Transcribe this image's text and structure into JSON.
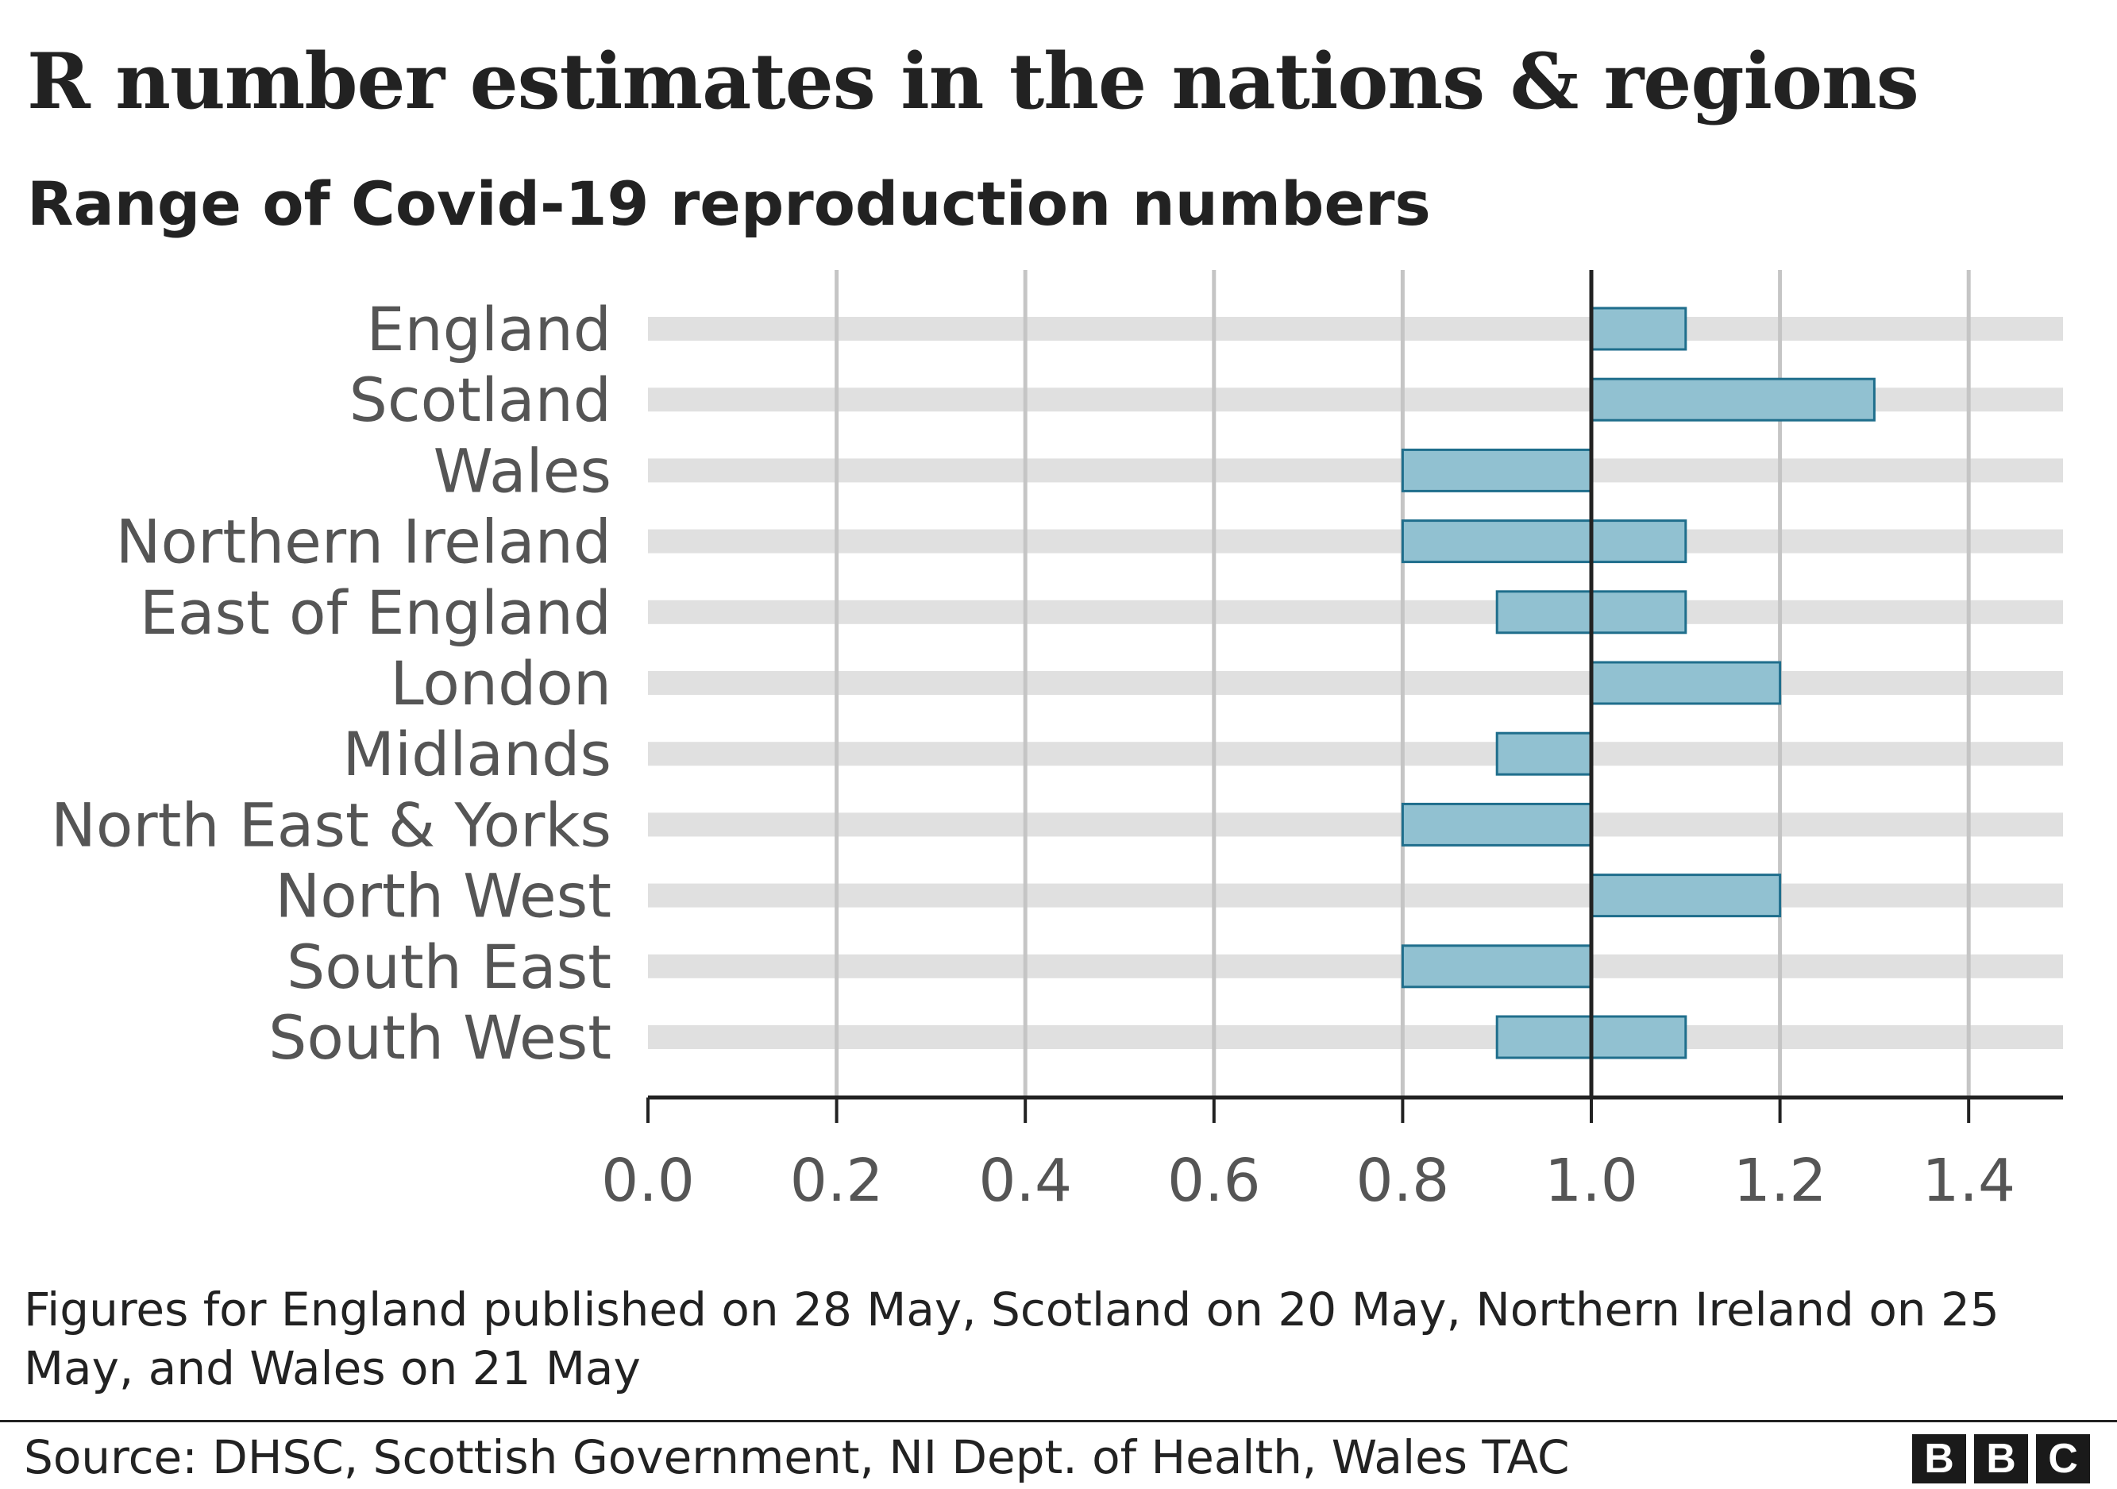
{
  "chart_data": {
    "type": "bar",
    "orientation": "horizontal",
    "chart_kind": "floating-range",
    "title": "R number estimates in the nations & regions",
    "subtitle": "Range of Covid-19 reproduction numbers",
    "xlabel": "",
    "ylabel": "",
    "categories": [
      "England",
      "Scotland",
      "Wales",
      "Northern Ireland",
      "East of England",
      "London",
      "Midlands",
      "North East & Yorks",
      "North West",
      "South East",
      "South West"
    ],
    "ranges": [
      [
        1.0,
        1.1
      ],
      [
        1.0,
        1.3
      ],
      [
        0.8,
        1.0
      ],
      [
        0.8,
        1.1
      ],
      [
        0.9,
        1.1
      ],
      [
        1.0,
        1.2
      ],
      [
        0.9,
        1.0
      ],
      [
        0.8,
        1.0
      ],
      [
        1.0,
        1.2
      ],
      [
        0.8,
        1.0
      ],
      [
        0.9,
        1.1
      ]
    ],
    "xlim": [
      0,
      1.5
    ],
    "xticks": [
      "0.0",
      "0.2",
      "0.4",
      "0.6",
      "0.8",
      "1.0",
      "1.2",
      "1.4"
    ],
    "reference_line": 1.0,
    "grid": true,
    "colors": {
      "bar_fill": "#91c1d1",
      "bar_stroke": "#1f6e8c",
      "band": "#e0e0e0",
      "grid": "#c5c5c5",
      "axis": "#222222",
      "category_text": "#555555"
    }
  },
  "footnote": "Figures for England published on 28 May, Scotland on 20 May, Northern Ireland on 25 May, and Wales on 21 May",
  "source": "Source: DHSC, Scottish Government, NI Dept. of Health, Wales TAC",
  "logo": {
    "letters": [
      "B",
      "B",
      "C"
    ]
  }
}
